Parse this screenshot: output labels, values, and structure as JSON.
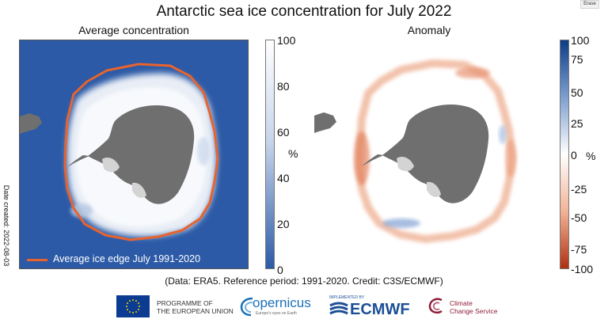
{
  "title": "Antarctic sea ice concentration for July 2022",
  "erase_label": "Erase",
  "date_created": "Date created: 2022-08-03",
  "footnote": "(Data: ERA5.  Reference period: 1991-2020.  Credit: C3S/ECMWF)",
  "colors": {
    "ocean": "#2c5aa6",
    "land": "#6f6f6f",
    "ice_shelf": "#d4d4d4",
    "ice_edge": "#e8632e",
    "positive": "#0d3d86",
    "negative": "#b03010"
  },
  "chart_data": [
    {
      "type": "heatmap",
      "panel": "left",
      "title": "Average concentration",
      "colorbar": {
        "min": 0,
        "max": 100,
        "unit": "%",
        "ticks": [
          "100",
          "80",
          "60",
          "40",
          "20",
          "0"
        ],
        "colors": [
          "#ffffff",
          "#2c5aa6"
        ]
      },
      "legend": {
        "label": "Average ice edge July 1991-2020",
        "placement": "bottom-left"
      }
    },
    {
      "type": "heatmap",
      "panel": "right",
      "title": "Anomaly",
      "colorbar": {
        "min": -100,
        "max": 100,
        "unit": "%",
        "ticks": [
          "100",
          "75",
          "50",
          "25",
          "0",
          "-25",
          "-50",
          "-75",
          "-100"
        ],
        "colors": [
          "#0d3d86",
          "#ffffff",
          "#b03010"
        ]
      }
    }
  ],
  "logos": {
    "eu": "PROGRAMME OF THE EUROPEAN UNION",
    "eu_line1": "PROGRAMME OF",
    "eu_line2": "THE EUROPEAN UNION",
    "copernicus": "opernicus",
    "copernicus_sub": "Europe's eyes on Earth",
    "implemented_by": "IMPLEMENTED BY",
    "ecmwf": "ECMWF",
    "c3s_line1": "Climate",
    "c3s_line2": "Change Service"
  }
}
